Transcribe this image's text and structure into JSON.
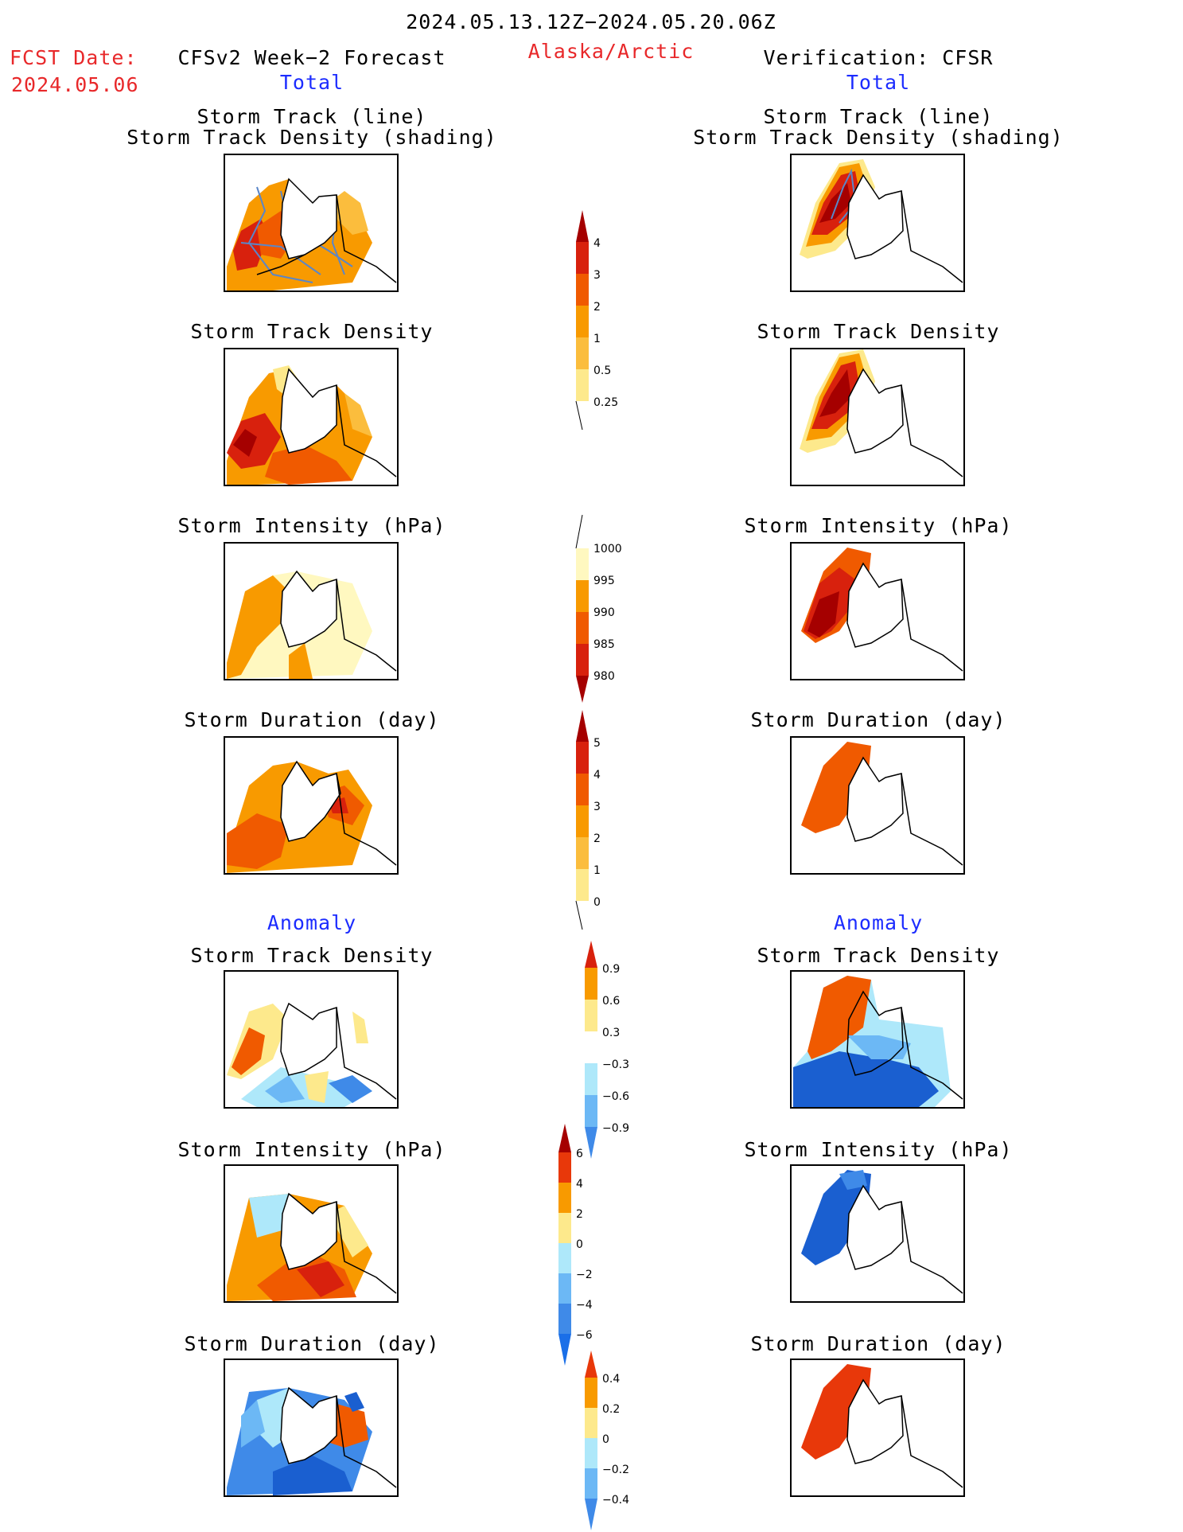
{
  "header": {
    "period": "2024.05.13.12Z−2024.05.20.06Z",
    "region": "Alaska/Arctic",
    "fcst_label": "FCST Date:",
    "fcst_date": "2024.05.06",
    "left_model": "CFSv2 Week−2 Forecast",
    "right_model": "Verification: CFSR"
  },
  "sections": {
    "total": "Total",
    "anomaly": "Anomaly"
  },
  "panels": {
    "track_line_1": "Storm Track (line)",
    "track_line_2": "Storm Track Density (shading)",
    "density": "Storm Track Density",
    "intensity": "Storm Intensity (hPa)",
    "duration": "Storm Duration (day)"
  },
  "colorbars": {
    "density_total": [
      "4",
      "3",
      "2",
      "1",
      "0.5",
      "0.25"
    ],
    "intensity_total": [
      "1000",
      "995",
      "990",
      "985",
      "980"
    ],
    "duration_total": [
      "5",
      "4",
      "3",
      "2",
      "1",
      "0"
    ],
    "density_anom": [
      "0.9",
      "0.6",
      "0.3",
      "−0.3",
      "−0.6",
      "−0.9"
    ],
    "intensity_anom": [
      "6",
      "4",
      "2",
      "0",
      "−2",
      "−4",
      "−6"
    ],
    "duration_anom": [
      "0.4",
      "0.2",
      "0",
      "−0.2",
      "−0.4"
    ]
  },
  "colors": {
    "c_dark_red": "#a50000",
    "c_red": "#d8210d",
    "c_orange_red": "#f05a00",
    "c_orange": "#f89a00",
    "c_light_orange": "#fbbd3d",
    "c_yellow": "#fde98c",
    "c_pale_yellow": "#fff8c0",
    "c_light_blue": "#aee8fa",
    "c_mid_blue": "#6cb8f5",
    "c_blue": "#3f8ae8",
    "c_dark_blue": "#1a5fd0",
    "track_line": "#5a86c8",
    "text_red": "#e8282a",
    "text_blue": "#1c2cff"
  }
}
